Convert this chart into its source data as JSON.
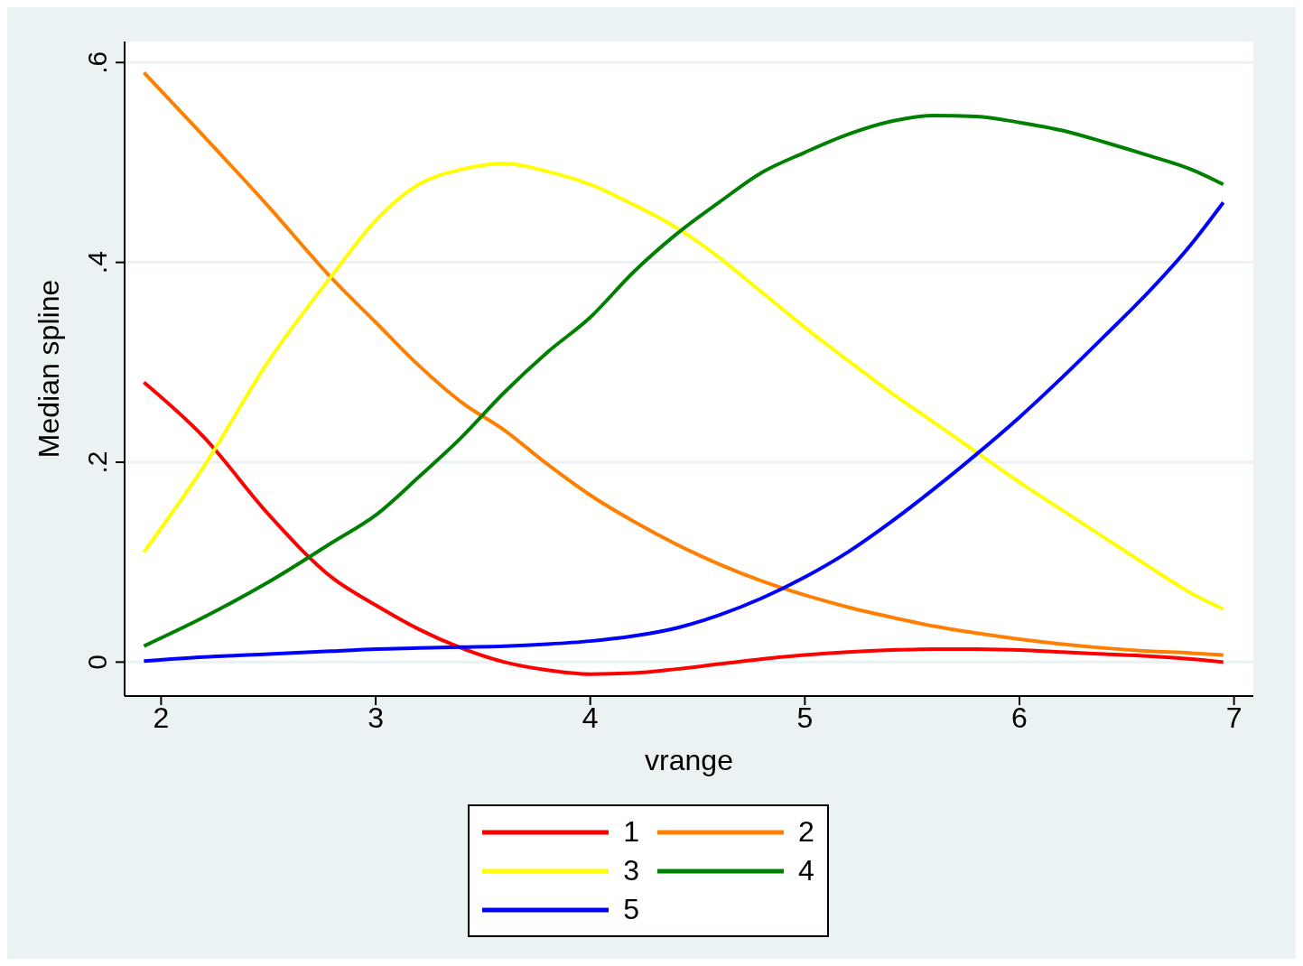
{
  "chart_data": {
    "type": "line",
    "xlabel": "vrange",
    "ylabel": "Median spline",
    "x": [
      1.92,
      2.2,
      2.5,
      2.8,
      3.0,
      3.2,
      3.4,
      3.6,
      3.8,
      4.0,
      4.2,
      4.4,
      4.6,
      4.8,
      5.0,
      5.2,
      5.4,
      5.6,
      5.8,
      6.0,
      6.2,
      6.4,
      6.6,
      6.8,
      6.95
    ],
    "series": [
      {
        "name": "1",
        "color": "#ff0000",
        "values": [
          0.28,
          0.225,
          0.148,
          0.084,
          0.057,
          0.033,
          0.014,
          0,
          -0.008,
          -0.012,
          -0.011,
          -0.007,
          -0.002,
          0.003,
          0.007,
          0.01,
          0.012,
          0.013,
          0.013,
          0.012,
          0.01,
          0.008,
          0.006,
          0.003,
          0
        ]
      },
      {
        "name": "2",
        "color": "#ff8000",
        "values": [
          0.59,
          0.526,
          0.456,
          0.383,
          0.34,
          0.297,
          0.26,
          0.232,
          0.198,
          0.167,
          0.141,
          0.118,
          0.098,
          0.081,
          0.067,
          0.055,
          0.045,
          0.036,
          0.029,
          0.023,
          0.018,
          0.014,
          0.011,
          0.009,
          0.007
        ]
      },
      {
        "name": "3",
        "color": "#ffff00",
        "values": [
          0.11,
          0.196,
          0.301,
          0.388,
          0.442,
          0.478,
          0.493,
          0.499,
          0.491,
          0.478,
          0.458,
          0.435,
          0.405,
          0.37,
          0.335,
          0.302,
          0.27,
          0.24,
          0.21,
          0.18,
          0.152,
          0.124,
          0.096,
          0.069,
          0.053
        ]
      },
      {
        "name": "4",
        "color": "#008000",
        "values": [
          0.016,
          0.045,
          0.08,
          0.12,
          0.147,
          0.185,
          0.225,
          0.27,
          0.31,
          0.345,
          0.39,
          0.428,
          0.46,
          0.49,
          0.51,
          0.528,
          0.541,
          0.547,
          0.546,
          0.54,
          0.532,
          0.52,
          0.507,
          0.493,
          0.478
        ]
      },
      {
        "name": "5",
        "color": "#0000ff",
        "values": [
          0.001,
          0.005,
          0.008,
          0.011,
          0.013,
          0.014,
          0.015,
          0.016,
          0.018,
          0.021,
          0.026,
          0.034,
          0.047,
          0.064,
          0.085,
          0.11,
          0.14,
          0.173,
          0.208,
          0.245,
          0.285,
          0.327,
          0.37,
          0.418,
          0.46
        ]
      }
    ],
    "xlim": [
      1.83,
      7.09
    ],
    "xticks": [
      2,
      3,
      4,
      5,
      6,
      7
    ],
    "ylim": [
      -0.034,
      0.621
    ],
    "yticks": [
      0,
      {
        "value": 0.2,
        "label": ".2"
      },
      {
        "value": 0.4,
        "label": ".4"
      },
      {
        "value": 0.6,
        "label": ".6"
      }
    ],
    "grid": "y",
    "legend": "bottom",
    "marker": "none",
    "line_style": "solid"
  }
}
